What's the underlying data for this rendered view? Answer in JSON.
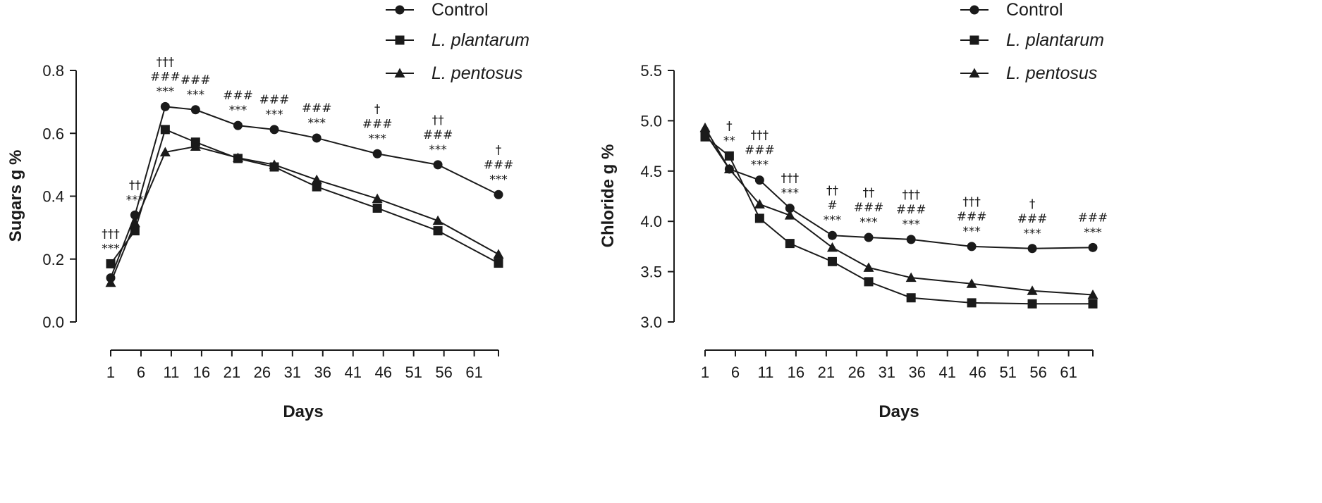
{
  "chart_data": [
    {
      "type": "line",
      "xlabel": "Days",
      "ylabel": "Sugars g %",
      "x_ticks": [
        1,
        6,
        11,
        16,
        21,
        26,
        31,
        36,
        41,
        46,
        51,
        56,
        61
      ],
      "y_ticks": [
        "0.0",
        "0.2",
        "0.4",
        "0.6",
        "0.8"
      ],
      "xlim": [
        1,
        65
      ],
      "ylim": [
        0,
        0.8
      ],
      "legend_position": "top-right",
      "series": [
        {
          "name": "Control",
          "marker": "circle",
          "x": [
            1,
            5,
            10,
            15,
            22,
            28,
            35,
            45,
            55,
            65
          ],
          "values": [
            0.14,
            0.34,
            0.685,
            0.675,
            0.625,
            0.612,
            0.585,
            0.535,
            0.5,
            0.405
          ]
        },
        {
          "name": "L. plantarum",
          "italic": true,
          "marker": "square",
          "x": [
            1,
            5,
            10,
            15,
            22,
            28,
            35,
            45,
            55,
            65
          ],
          "values": [
            0.185,
            0.29,
            0.612,
            0.572,
            0.52,
            0.493,
            0.43,
            0.362,
            0.29,
            0.187
          ]
        },
        {
          "name": "L. pentosus",
          "italic": true,
          "marker": "triangle",
          "x": [
            1,
            5,
            10,
            15,
            22,
            28,
            35,
            45,
            55,
            65
          ],
          "values": [
            0.125,
            0.315,
            0.54,
            0.558,
            0.522,
            0.5,
            0.452,
            0.392,
            0.322,
            0.215
          ]
        }
      ],
      "annotations": [
        {
          "x": 1,
          "above": 0.185,
          "lines": [
            "†††",
            "***"
          ]
        },
        {
          "x": 5,
          "above": 0.34,
          "lines": [
            "††",
            "***"
          ]
        },
        {
          "x": 10,
          "above": 0.685,
          "lines": [
            "†††",
            "###",
            "***"
          ]
        },
        {
          "x": 15,
          "above": 0.675,
          "lines": [
            "###",
            "***"
          ]
        },
        {
          "x": 22,
          "above": 0.625,
          "lines": [
            "###",
            "***"
          ]
        },
        {
          "x": 28,
          "above": 0.612,
          "lines": [
            "###",
            "***"
          ]
        },
        {
          "x": 35,
          "above": 0.585,
          "lines": [
            "###",
            "***"
          ]
        },
        {
          "x": 45,
          "above": 0.535,
          "lines": [
            "†",
            "###",
            "***"
          ]
        },
        {
          "x": 55,
          "above": 0.5,
          "lines": [
            "††",
            "###",
            "***"
          ]
        },
        {
          "x": 65,
          "above": 0.405,
          "lines": [
            "†",
            "###",
            "***"
          ]
        }
      ]
    },
    {
      "type": "line",
      "xlabel": "Days",
      "ylabel": "Chloride g %",
      "x_ticks": [
        1,
        6,
        11,
        16,
        21,
        26,
        31,
        36,
        41,
        46,
        51,
        56,
        61
      ],
      "y_ticks": [
        "3.0",
        "3.5",
        "4.0",
        "4.5",
        "5.0",
        "5.5"
      ],
      "xlim": [
        1,
        65
      ],
      "ylim": [
        3.0,
        5.5
      ],
      "legend_position": "top-right",
      "series": [
        {
          "name": "Control",
          "marker": "circle",
          "x": [
            1,
            5,
            10,
            15,
            22,
            28,
            35,
            45,
            55,
            65
          ],
          "values": [
            4.88,
            4.52,
            4.41,
            4.13,
            3.86,
            3.84,
            3.82,
            3.75,
            3.73,
            3.74
          ]
        },
        {
          "name": "L. plantarum",
          "italic": true,
          "marker": "square",
          "x": [
            1,
            5,
            10,
            15,
            22,
            28,
            35,
            45,
            55,
            65
          ],
          "values": [
            4.84,
            4.65,
            4.03,
            3.78,
            3.6,
            3.4,
            3.24,
            3.19,
            3.18,
            3.18
          ]
        },
        {
          "name": "L. pentosus",
          "italic": true,
          "marker": "triangle",
          "x": [
            1,
            5,
            10,
            15,
            22,
            28,
            35,
            45,
            55,
            65
          ],
          "values": [
            4.93,
            4.52,
            4.17,
            4.06,
            3.74,
            3.54,
            3.44,
            3.38,
            3.31,
            3.27
          ]
        }
      ],
      "annotations": [
        {
          "x": 5,
          "above": 4.65,
          "lines": [
            "†",
            "**"
          ]
        },
        {
          "x": 10,
          "above": 4.41,
          "lines": [
            "†††",
            "###",
            "***"
          ]
        },
        {
          "x": 15,
          "above": 4.13,
          "lines": [
            "†††",
            "***"
          ]
        },
        {
          "x": 22,
          "above": 3.86,
          "lines": [
            "††",
            "#",
            "***"
          ]
        },
        {
          "x": 28,
          "above": 3.84,
          "lines": [
            "††",
            "###",
            "***"
          ]
        },
        {
          "x": 35,
          "above": 3.82,
          "lines": [
            "†††",
            "###",
            "***"
          ]
        },
        {
          "x": 45,
          "above": 3.75,
          "lines": [
            "†††",
            "###",
            "***"
          ]
        },
        {
          "x": 55,
          "above": 3.73,
          "lines": [
            "†",
            "###",
            "***"
          ]
        },
        {
          "x": 65,
          "above": 3.74,
          "lines": [
            "###",
            "***"
          ]
        }
      ]
    }
  ]
}
